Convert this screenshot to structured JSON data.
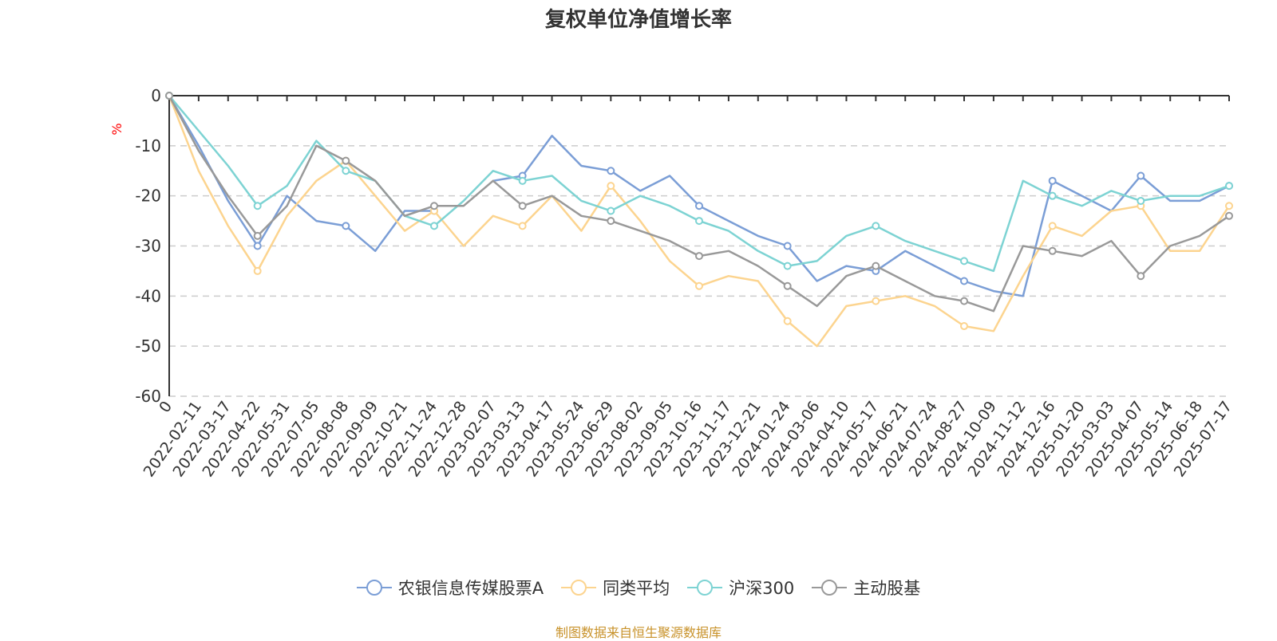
{
  "chart_data": {
    "type": "line",
    "title": "复权单位净值增长率",
    "ylabel": "%",
    "ylim": [
      -60,
      0
    ],
    "yticks": [
      "0",
      "-10",
      "-20",
      "-30",
      "-40",
      "-50",
      "-60"
    ],
    "xticks": [
      "0",
      "2022-02-11",
      "2022-03-17",
      "2022-04-22",
      "2022-05-31",
      "2022-07-05",
      "2022-08-08",
      "2022-09-09",
      "2022-10-21",
      "2022-11-24",
      "2022-12-28",
      "2023-02-07",
      "2023-03-13",
      "2023-04-17",
      "2023-05-24",
      "2023-06-29",
      "2023-08-02",
      "2023-09-05",
      "2023-10-16",
      "2023-11-17",
      "2023-12-21",
      "2024-01-24",
      "2024-03-06",
      "2024-04-10",
      "2024-05-17",
      "2024-06-21",
      "2024-07-24",
      "2024-08-27",
      "2024-10-09",
      "2024-11-12",
      "2024-12-16",
      "2025-01-20",
      "2025-03-03",
      "2025-04-07",
      "2025-05-14",
      "2025-06-18",
      "2025-07-17"
    ],
    "grid": true,
    "legend_position": "bottom",
    "series": [
      {
        "name": "农银信息传媒股票A",
        "color": "#7b9ed6",
        "values": [
          0,
          -10,
          -21,
          -30,
          -20,
          -25,
          -26,
          -31,
          -23,
          -23,
          null,
          -17,
          -16,
          -8,
          -14,
          -15,
          -19,
          -16,
          -22,
          -25,
          -28,
          -30,
          -37,
          -34,
          -35,
          -31,
          -34,
          -37,
          -39,
          -40,
          -17,
          -20,
          -23,
          -16,
          -21,
          -21,
          -18
        ]
      },
      {
        "name": "同类平均",
        "color": "#fcd48f",
        "values": [
          0,
          -15,
          -26,
          -35,
          -24,
          -17,
          -13,
          -20,
          -27,
          -23,
          -30,
          -24,
          -26,
          -20,
          -27,
          -18,
          -25,
          -33,
          -38,
          -36,
          -37,
          -45,
          -50,
          -42,
          -41,
          -40,
          -42,
          -46,
          -47,
          -36,
          -26,
          -28,
          -23,
          -22,
          -31,
          -31,
          -22
        ]
      },
      {
        "name": "沪深300",
        "color": "#7dd3d3",
        "values": [
          0,
          -7,
          -14,
          -22,
          -18,
          -9,
          -15,
          -17,
          -24,
          -26,
          -21,
          -15,
          -17,
          -16,
          -21,
          -23,
          -20,
          -22,
          -25,
          -27,
          -31,
          -34,
          -33,
          -28,
          -26,
          -29,
          -31,
          -33,
          -35,
          -17,
          -20,
          -22,
          -19,
          -21,
          -20,
          -20,
          -18
        ]
      },
      {
        "name": "主动股基",
        "color": "#999999",
        "values": [
          0,
          -11,
          -20,
          -28,
          -22,
          -10,
          -13,
          -17,
          -24,
          -22,
          -22,
          -17,
          -22,
          -20,
          -24,
          -25,
          -27,
          -29,
          -32,
          -31,
          -34,
          -38,
          -42,
          -36,
          -34,
          -37,
          -40,
          -41,
          -43,
          -30,
          -31,
          -32,
          -29,
          -36,
          -30,
          -28,
          -24
        ]
      }
    ]
  },
  "source_note": "制图数据来自恒生聚源数据库"
}
